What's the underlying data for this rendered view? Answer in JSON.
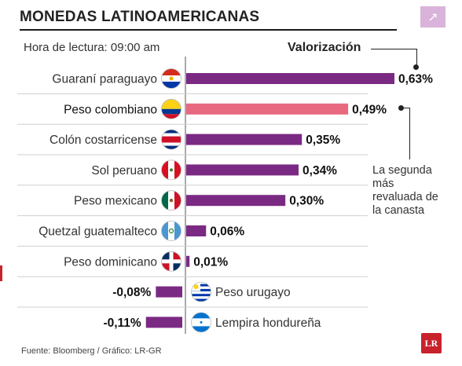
{
  "title": "MONEDAS LATINOAMERICANAS",
  "subtitle": "Hora de lectura: 09:00 am",
  "corner_icon": "arrow-up-right-icon",
  "annotation": {
    "label": "Valorización",
    "note": "La segunda más revaluada de la canasta"
  },
  "source": "Fuente: Bloomberg / Gráfico: LR-GR",
  "logo_text": "LR",
  "colors": {
    "bar": "#7b2a84",
    "highlight": "#e8687f",
    "accent": "#c8232c"
  },
  "chart_data": {
    "type": "bar",
    "orientation": "horizontal",
    "unit": "%",
    "categories": [
      "Guaraní paraguayo",
      "Peso colombiano",
      "Colón costarricense",
      "Sol peruano",
      "Peso mexicano",
      "Quetzal guatemalteco",
      "Peso dominicano",
      "Peso urugayo",
      "Lempira hondureña"
    ],
    "values": [
      0.63,
      0.49,
      0.35,
      0.34,
      0.3,
      0.06,
      0.01,
      -0.08,
      -0.11
    ],
    "value_labels": [
      "0,63%",
      "0,49%",
      "0,35%",
      "0,34%",
      "0,30%",
      "0,06%",
      "0,01%",
      "-0,08%",
      "-0,11%"
    ],
    "flags": [
      "paraguay-flag-icon",
      "colombia-flag-icon",
      "costa-rica-flag-icon",
      "peru-flag-icon",
      "mexico-flag-icon",
      "guatemala-flag-icon",
      "dominican-republic-flag-icon",
      "uruguay-flag-icon",
      "honduras-flag-icon"
    ],
    "highlight": "Peso colombiano",
    "xlim": [
      -0.11,
      0.63
    ]
  }
}
